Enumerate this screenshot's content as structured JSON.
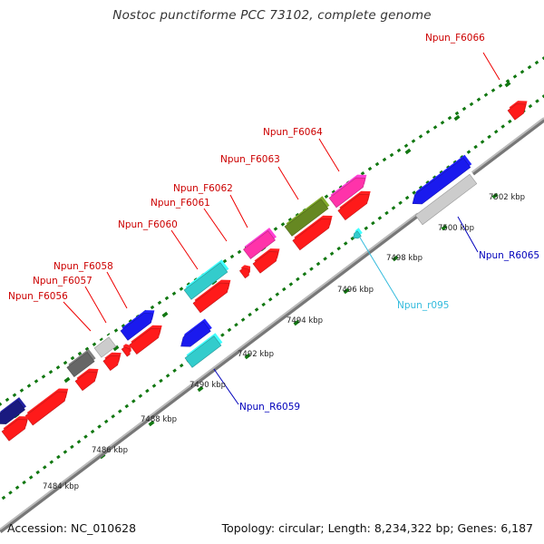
{
  "title": "Nostoc punctiforme PCC 73102, complete genome",
  "footer": {
    "accession": "Accession: NC_010628",
    "summary": "Topology: circular; Length: 8,234,322 bp; Genes: 6,187"
  },
  "colors": {
    "backbone": "#999999",
    "tick": "#117711",
    "forward_label": "#cc0000",
    "reverse_label": "#0000bb",
    "rna_label": "#33bbdd",
    "cds": "#ff1a1a",
    "blue": "#1a1aee",
    "navy": "#1a1a80",
    "cyan": "#33cccc",
    "magenta": "#ff33aa",
    "olive": "#668822",
    "silver": "#cccccc",
    "gray": "#666666"
  },
  "scale_labels": [
    "7484 kbp",
    "7486 kbp",
    "7488 kbp",
    "7490 kbp",
    "7492 kbp",
    "7494 kbp",
    "7496 kbp",
    "7498 kbp",
    "7500 kbp",
    "7502 kbp"
  ],
  "gene_labels": [
    {
      "text": "Npun_F6056",
      "type": "forward"
    },
    {
      "text": "Npun_F6057",
      "type": "forward"
    },
    {
      "text": "Npun_F6058",
      "type": "forward"
    },
    {
      "text": "Npun_F6060",
      "type": "forward"
    },
    {
      "text": "Npun_F6061",
      "type": "forward"
    },
    {
      "text": "Npun_F6062",
      "type": "forward"
    },
    {
      "text": "Npun_F6063",
      "type": "forward"
    },
    {
      "text": "Npun_F6064",
      "type": "forward"
    },
    {
      "text": "Npun_F6066",
      "type": "forward"
    },
    {
      "text": "Npun_R6059",
      "type": "reverse"
    },
    {
      "text": "Npun_R6065",
      "type": "reverse"
    },
    {
      "text": "Npun_r095",
      "type": "rna"
    }
  ]
}
